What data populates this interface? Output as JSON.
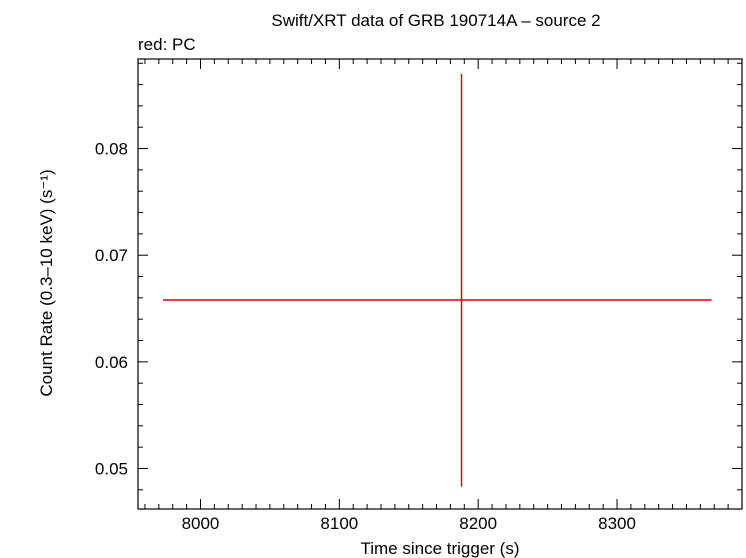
{
  "chart_data": {
    "type": "scatter",
    "title": "Swift/XRT data of GRB 190714A – source 2",
    "subtitle": "red: PC",
    "xlabel": "Time since trigger (s)",
    "ylabel": "Count Rate (0.3–10 keV) (s⁻¹)",
    "xlim": [
      7955,
      8390
    ],
    "ylim": [
      0.0462,
      0.0884
    ],
    "x_ticks": [
      8000,
      8100,
      8200,
      8300
    ],
    "x_tick_labels": [
      "8000",
      "8100",
      "8200",
      "8300"
    ],
    "y_ticks": [
      0.05,
      0.06,
      0.07,
      0.08
    ],
    "y_tick_labels": [
      "0.05",
      "0.06",
      "0.07",
      "0.08"
    ],
    "grid": false,
    "series": [
      {
        "name": "PC",
        "color": "#dd0000",
        "points": [
          {
            "x": 8188,
            "x_err_low": 215,
            "x_err_high": 180,
            "y": 0.0658,
            "y_err_low": 0.0175,
            "y_err_high": 0.0212
          }
        ]
      }
    ]
  }
}
